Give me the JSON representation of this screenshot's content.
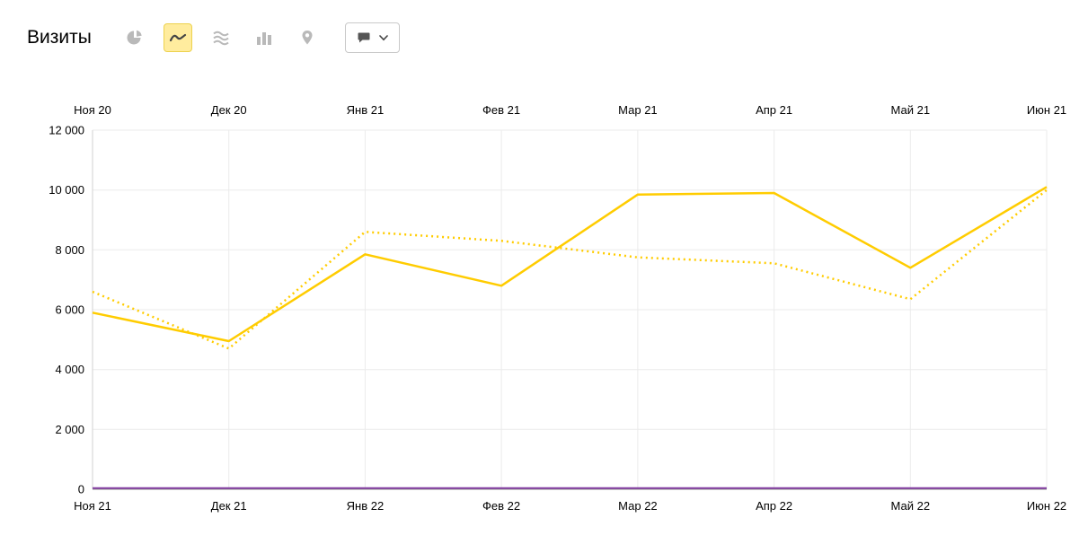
{
  "header": {
    "title": "Визиты",
    "chart_type_buttons": [
      {
        "icon": "pie-chart-icon",
        "selected": false
      },
      {
        "icon": "line-chart-icon",
        "selected": true
      },
      {
        "icon": "stacked-area-chart-icon",
        "selected": false
      },
      {
        "icon": "bar-chart-icon",
        "selected": false
      },
      {
        "icon": "map-icon",
        "selected": false
      }
    ],
    "comment_button": {
      "icons": [
        "comment-icon",
        "chevron-down-icon"
      ]
    }
  },
  "colors": {
    "accent_yellow": "#ffcc00",
    "baseline_purple": "#8641a4",
    "grid": "#ebebeb",
    "axis_bottom": "#858585",
    "axis_left": "#d2d2d2",
    "selected_button_bg": "#ffec9e",
    "selected_button_border": "#edd24e",
    "icon_gray": "#b9b9b9"
  },
  "chart_data": {
    "type": "line",
    "title": "Визиты",
    "grid": true,
    "legend": "none",
    "ylim": [
      0,
      12000
    ],
    "x_top": [
      "Ноя 20",
      "Дек 20",
      "Янв 21",
      "Фев 21",
      "Мар 21",
      "Апр 21",
      "Май 21",
      "Июн 21"
    ],
    "x_bottom": [
      "Ноя 21",
      "Дек 21",
      "Янв 22",
      "Фев 22",
      "Мар 22",
      "Апр 22",
      "Май 22",
      "Июн 22"
    ],
    "y_ticks": [
      {
        "label": "12 000",
        "value": 12000
      },
      {
        "label": "10 000",
        "value": 10000
      },
      {
        "label": "8 000",
        "value": 8000
      },
      {
        "label": "6 000",
        "value": 6000
      },
      {
        "label": "4 000",
        "value": 4000
      },
      {
        "label": "2 000",
        "value": 2000
      },
      {
        "label": "0",
        "value": 0
      }
    ],
    "series": [
      {
        "name": "visits-current-period",
        "x_labels": "x_bottom",
        "style": "solid",
        "color": "#ffcc00",
        "width": 2.5,
        "values": [
          5900,
          4950,
          7850,
          6800,
          9850,
          9900,
          7400,
          10100
        ]
      },
      {
        "name": "visits-previous-period",
        "x_labels": "x_top",
        "style": "dotted",
        "color": "#ffcc00",
        "width": 2.5,
        "values": [
          6600,
          4700,
          8600,
          8300,
          7750,
          7550,
          6350,
          10000
        ]
      },
      {
        "name": "flat-baseline",
        "x_labels": "x_bottom",
        "style": "solid",
        "color": "#8641a4",
        "width": 2,
        "values": [
          40,
          40,
          40,
          40,
          40,
          40,
          40,
          40
        ]
      }
    ]
  }
}
